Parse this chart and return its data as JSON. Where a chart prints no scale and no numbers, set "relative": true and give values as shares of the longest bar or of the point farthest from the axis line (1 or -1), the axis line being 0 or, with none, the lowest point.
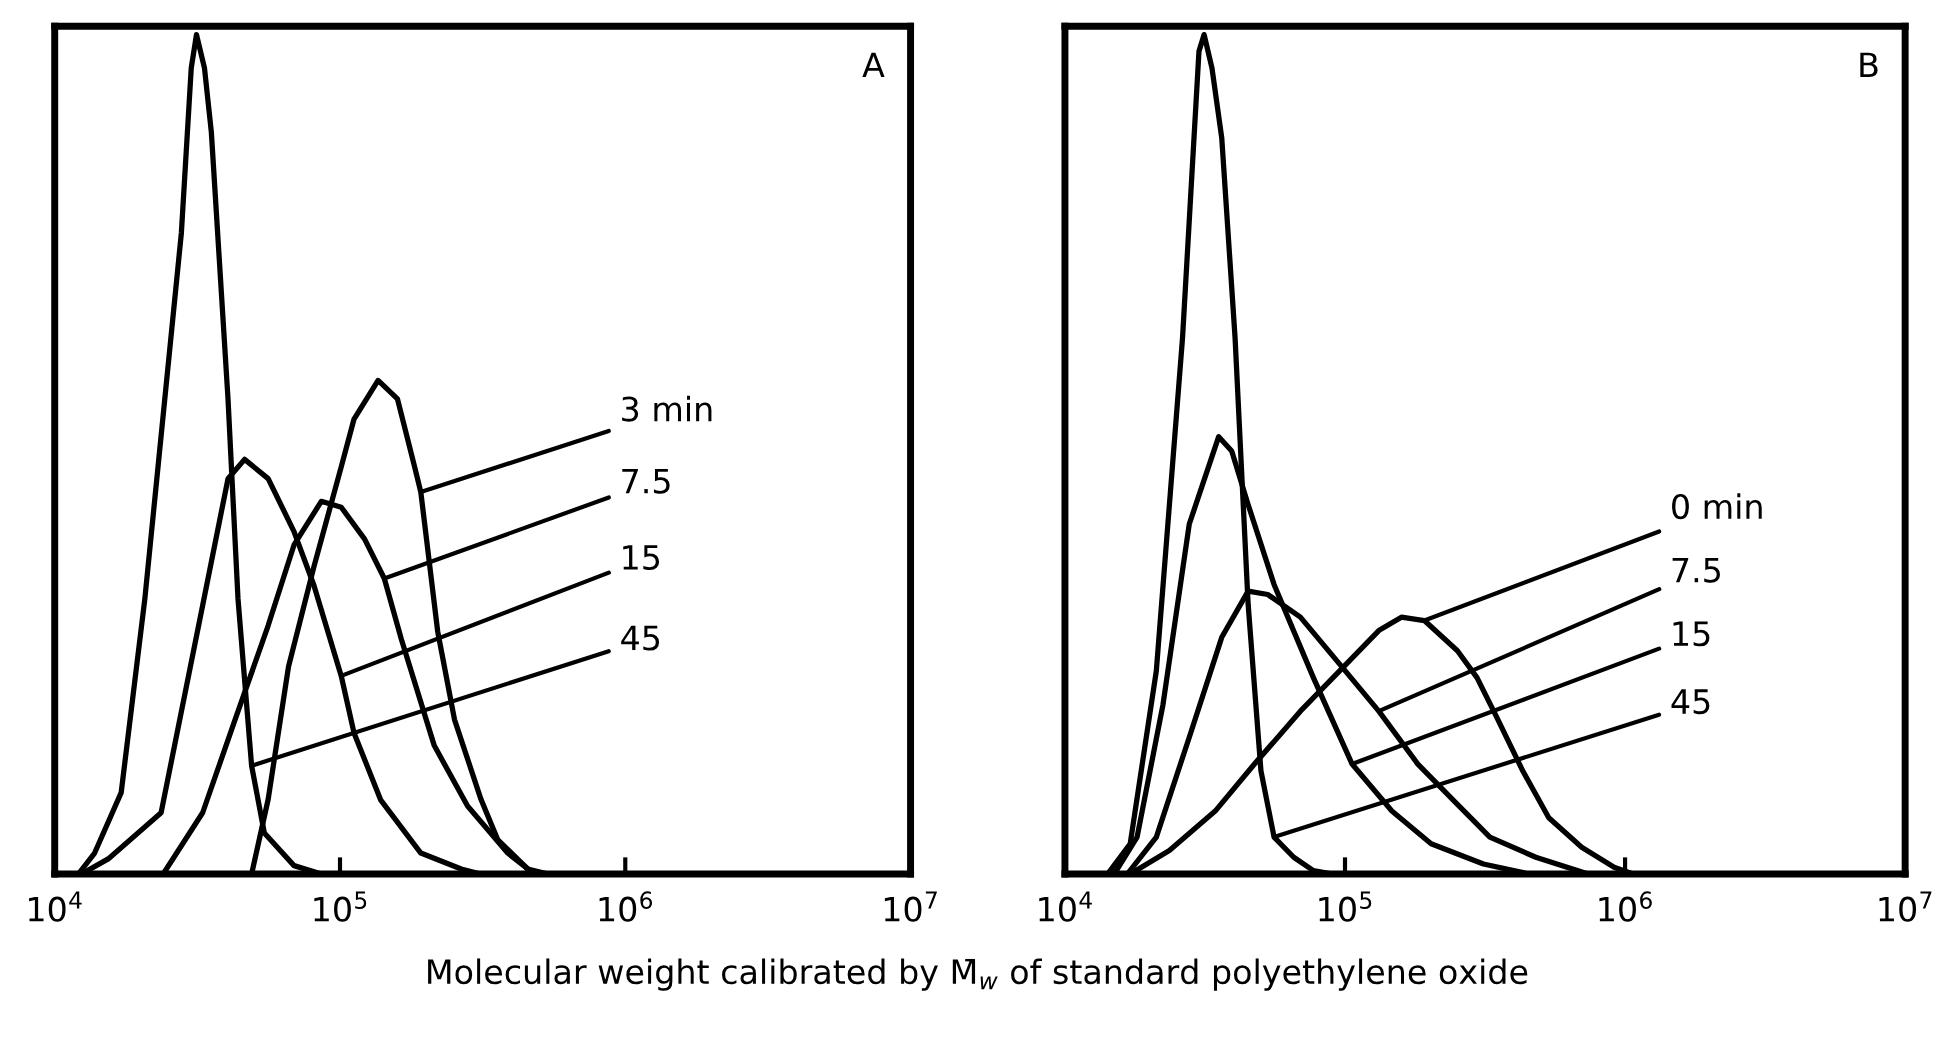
{
  "chart_data": [
    {
      "type": "line",
      "title": "A",
      "xlabel": "Molecular weight calibrated by M̄$_{w}$ of standard polyethylene oxide",
      "relative": true,
      "log": "x",
      "xlim": [
        10000,
        10000000
      ],
      "xticks": [
        {
          "value": 10000,
          "label": "10$^{4}$"
        },
        {
          "value": 100000,
          "label": "10$^{5}$"
        },
        {
          "value": 1000000,
          "label": "10$^{6}$"
        },
        {
          "value": 10000000,
          "label": "10$^{7}$"
        }
      ],
      "tick_labels": "x",
      "grid": false,
      "legend": false,
      "line_style": "solid",
      "marker": "none",
      "series": [
        {
          "name": "3 min",
          "color": "#000000",
          "x": [
            49000,
            56000,
            66000,
            81000,
            101000,
            112000,
            136000,
            159000,
            182000,
            192000,
            220000,
            252000,
            312000,
            357000,
            455000,
            534000
          ],
          "values": [
            0,
            0.089,
            0.247,
            0.366,
            0.485,
            0.542,
            0.588,
            0.566,
            0.487,
            0.455,
            0.289,
            0.184,
            0.089,
            0.041,
            0.006,
            0
          ]
        },
        {
          "name": "7.5",
          "color": "#000000",
          "x": [
            24000,
            33000,
            43000,
            56000,
            69000,
            86000,
            101000,
            122000,
            143000,
            164000,
            214000,
            280000,
            387000,
            480000
          ],
          "values": [
            0,
            0.073,
            0.185,
            0.296,
            0.392,
            0.444,
            0.437,
            0.399,
            0.352,
            0.28,
            0.153,
            0.081,
            0.025,
            0
          ]
        },
        {
          "name": "15",
          "color": "#000000",
          "x": [
            12400,
            15400,
            23600,
            33000,
            40500,
            46300,
            56000,
            69000,
            81000,
            101000,
            112000,
            139000,
            192000,
            266000,
            312000
          ],
          "values": [
            0,
            0.018,
            0.073,
            0.32,
            0.471,
            0.494,
            0.471,
            0.408,
            0.344,
            0.236,
            0.168,
            0.088,
            0.025,
            0.006,
            0
          ]
        },
        {
          "name": "45",
          "color": "#000000",
          "x": [
            12100,
            13800,
            17100,
            20700,
            24300,
            27800,
            30100,
            31400,
            33500,
            35400,
            40500,
            43900,
            49000,
            54300,
            69000,
            86000
          ],
          "values": [
            0,
            0.025,
            0.097,
            0.328,
            0.565,
            0.764,
            0.96,
            1,
            0.96,
            0.884,
            0.566,
            0.328,
            0.129,
            0.049,
            0.01,
            0
          ]
        }
      ]
    },
    {
      "type": "line",
      "title": "B",
      "relative": true,
      "log": "x",
      "xlim": [
        10000,
        10000000
      ],
      "xticks": [
        {
          "value": 10000,
          "label": "10$^{4}$"
        },
        {
          "value": 100000,
          "label": "10$^{5}$"
        },
        {
          "value": 1000000,
          "label": "10$^{6}$"
        },
        {
          "value": 10000000,
          "label": "10$^{7}$"
        }
      ],
      "tick_labels": "x",
      "grid": false,
      "legend": false,
      "line_style": "solid",
      "marker": "none",
      "series": [
        {
          "name": "0 min",
          "color": "#000000",
          "x": [
            17100,
            23600,
            34400,
            47500,
            69300,
            101000,
            132000,
            159000,
            192000,
            252000,
            296000,
            348000,
            431000,
            534000,
            700000,
            914000,
            1070000
          ],
          "values": [
            0,
            0.028,
            0.075,
            0.131,
            0.194,
            0.25,
            0.29,
            0.306,
            0.302,
            0.266,
            0.234,
            0.187,
            0.123,
            0.067,
            0.032,
            0.008,
            0
          ]
        },
        {
          "name": "7.5",
          "color": "#000000",
          "x": [
            16700,
            21200,
            27800,
            36300,
            45100,
            53000,
            69300,
            95700,
            132000,
            182000,
            252000,
            329000,
            480000,
            738000
          ],
          "values": [
            0,
            0.044,
            0.163,
            0.282,
            0.337,
            0.333,
            0.306,
            0.25,
            0.194,
            0.131,
            0.083,
            0.044,
            0.02,
            0
          ]
        },
        {
          "name": "15",
          "color": "#000000",
          "x": [
            15000,
            18100,
            22400,
            27800,
            35400,
            39400,
            45100,
            55800,
            77100,
            106000,
            147000,
            203000,
            312000,
            455000
          ],
          "values": [
            0,
            0.044,
            0.202,
            0.417,
            0.521,
            0.504,
            0.44,
            0.345,
            0.234,
            0.131,
            0.075,
            0.036,
            0.012,
            0
          ]
        },
        {
          "name": "45",
          "color": "#000000",
          "x": [
            14200,
            17100,
            21200,
            26300,
            30100,
            31400,
            33500,
            36300,
            40500,
            45100,
            50100,
            55800,
            65600,
            77100,
            90600
          ],
          "values": [
            0,
            0.036,
            0.242,
            0.639,
            0.98,
            1,
            0.96,
            0.877,
            0.639,
            0.321,
            0.123,
            0.044,
            0.02,
            0.004,
            0
          ]
        }
      ]
    }
  ]
}
